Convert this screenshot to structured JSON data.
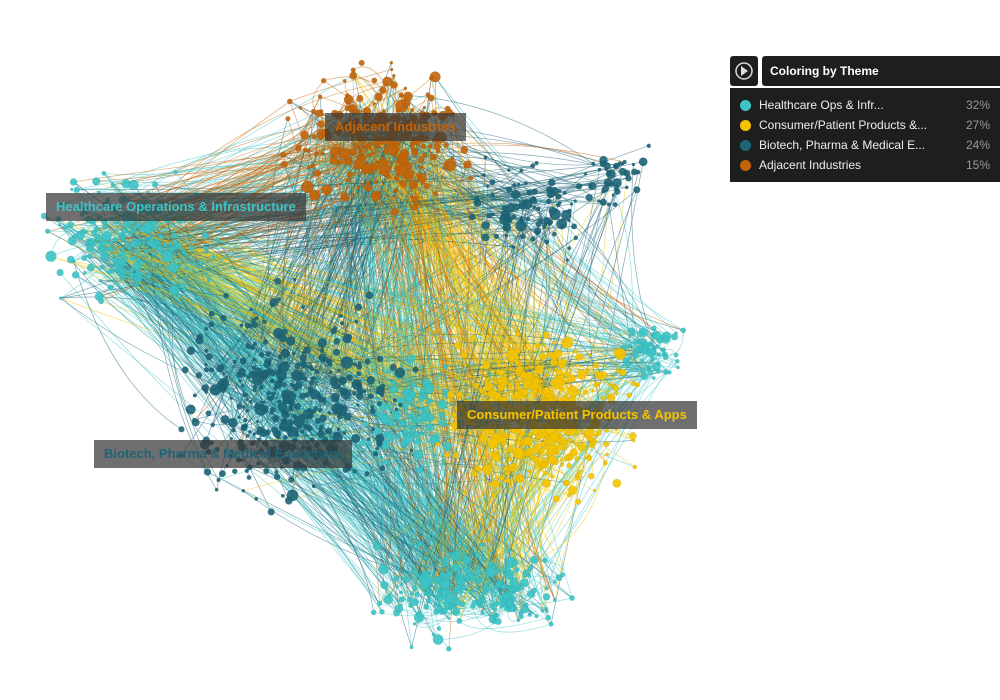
{
  "panel": {
    "title": "Coloring by Theme",
    "items": [
      {
        "label": "Healthcare Ops & Infr...",
        "share": "32%",
        "color": "#3cc4c6"
      },
      {
        "label": "Consumer/Patient Products &...",
        "share": "27%",
        "color": "#f5c400"
      },
      {
        "label": "Biotech, Pharma & Medical E...",
        "share": "24%",
        "color": "#1d6477"
      },
      {
        "label": "Adjacent Industries",
        "share": "15%",
        "color": "#c2640a"
      }
    ]
  },
  "clusters": [
    {
      "label": "Adjacent Industries",
      "color": "#c2640a"
    },
    {
      "label": "Healthcare Operations & Infrastructure",
      "color": "#3cc4c6"
    },
    {
      "label": "Consumer/Patient Products & Apps",
      "color": "#f5c400"
    },
    {
      "label": "Biotech, Pharma & Medical Equipment",
      "color": "#1d6477"
    }
  ]
}
